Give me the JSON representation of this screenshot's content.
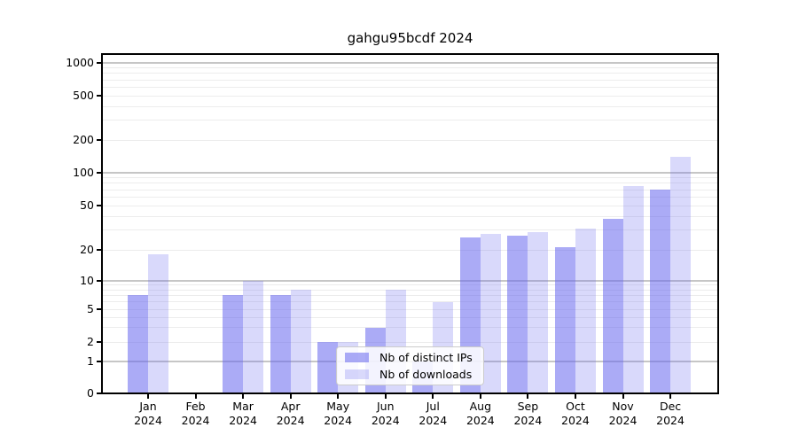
{
  "title": "gahgu95bcdf 2024",
  "chart_data": {
    "type": "bar",
    "title": "gahgu95bcdf 2024",
    "x_axis": {
      "categories": [
        {
          "month": "Jan",
          "year": "2024"
        },
        {
          "month": "Feb",
          "year": "2024"
        },
        {
          "month": "Mar",
          "year": "2024"
        },
        {
          "month": "Apr",
          "year": "2024"
        },
        {
          "month": "May",
          "year": "2024"
        },
        {
          "month": "Jun",
          "year": "2024"
        },
        {
          "month": "Jul",
          "year": "2024"
        },
        {
          "month": "Aug",
          "year": "2024"
        },
        {
          "month": "Sep",
          "year": "2024"
        },
        {
          "month": "Oct",
          "year": "2024"
        },
        {
          "month": "Nov",
          "year": "2024"
        },
        {
          "month": "Dec",
          "year": "2024"
        }
      ]
    },
    "series": [
      {
        "name": "Nb of distinct IPs",
        "color": "rgba(102,102,238,0.55)",
        "values": [
          7,
          0,
          7,
          7,
          2,
          3,
          1,
          26,
          27,
          21,
          38,
          70
        ]
      },
      {
        "name": "Nb of downloads",
        "color": "rgba(102,102,238,0.25)",
        "values": [
          18,
          0,
          10,
          8,
          2,
          8,
          6,
          28,
          29,
          31,
          75,
          140
        ]
      }
    ],
    "y_axis": {
      "tick_labels": [
        "0",
        "1",
        "2",
        "5",
        "10",
        "20",
        "50",
        "100",
        "200",
        "500",
        "1000"
      ],
      "scale": "log-like",
      "range": [
        0,
        1200
      ]
    },
    "grid": true,
    "legend_position": "lower-center"
  },
  "colors": {
    "bar_ips": "rgba(102,102,238,0.55)",
    "bar_downloads": "rgba(102,102,238,0.25)",
    "grid_major": "#c6c6c6",
    "grid_minor": "#ececec",
    "axis": "#000000",
    "background": "#ffffff",
    "legend_border": "#cccccc"
  }
}
